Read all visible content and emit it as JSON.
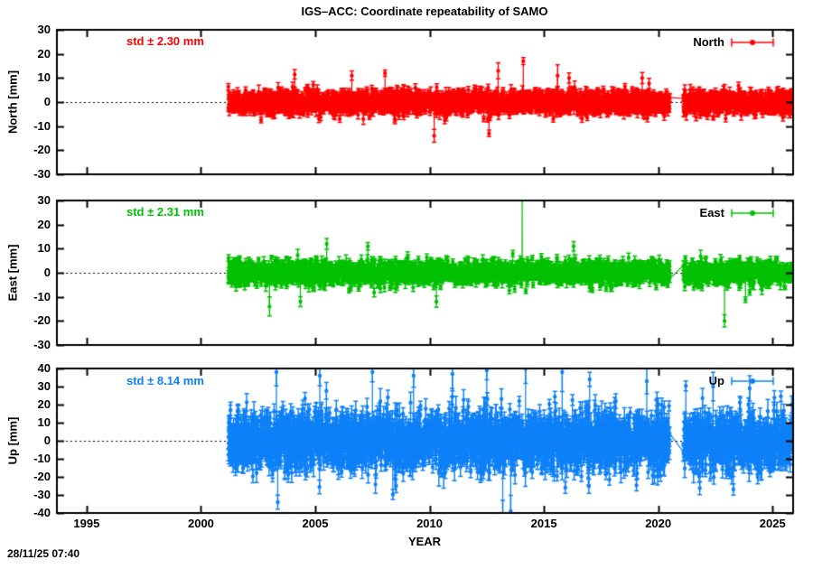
{
  "title": "IGS–ACC: Coordinate repeatability of SAMO",
  "xlabel": "YEAR",
  "timestamp": "28/11/25 07:40",
  "chart_data": {
    "type": "scatter",
    "title": "IGS–ACC: Coordinate repeatability of SAMO",
    "xlabel": "YEAR",
    "x_range": [
      1993.7,
      2025.9
    ],
    "x_ticks": [
      1995,
      2000,
      2005,
      2010,
      2015,
      2020,
      2025
    ],
    "grid": false,
    "zero_line_style": "dotted",
    "legend_position": "top-right-inside",
    "panels": [
      {
        "name": "North",
        "axis_label": "North [mm]",
        "legend_label": "North",
        "std_label": "std ± 2.30 mm",
        "std_value_mm": 2.3,
        "color": "#ff0000",
        "ylim": [
          -30,
          30
        ],
        "yticks": [
          30,
          20,
          10,
          0,
          -10,
          -20,
          -30
        ],
        "data_start": 2001.2,
        "data_end": 2025.85,
        "gap": [
          2020.5,
          2021.1
        ],
        "noise_std": 2.3,
        "err_base": 0.8,
        "err_var": 0.7,
        "tail_prob": 0.02,
        "tail_factor": 1.5,
        "seed": 7,
        "outliers": [
          [
            2004.1,
            11.5
          ],
          [
            2006.6,
            11
          ],
          [
            2008.05,
            12
          ],
          [
            2010.2,
            -14
          ],
          [
            2012.6,
            -13
          ],
          [
            2013.0,
            13
          ],
          [
            2014.1,
            17
          ],
          [
            2015.6,
            11
          ],
          [
            2016.1,
            10
          ],
          [
            2019.3,
            10
          ]
        ]
      },
      {
        "name": "East",
        "axis_label": "East [mm]",
        "legend_label": "East",
        "std_label": "std ± 2.31 mm",
        "std_value_mm": 2.31,
        "color": "#00c000",
        "ylim": [
          -30,
          30
        ],
        "yticks": [
          30,
          20,
          10,
          0,
          -10,
          -20,
          -30
        ],
        "data_start": 2001.2,
        "data_end": 2025.85,
        "gap": [
          2020.5,
          2021.1
        ],
        "noise_std": 2.31,
        "err_base": 0.8,
        "err_var": 0.7,
        "tail_prob": 0.02,
        "tail_factor": 1.5,
        "seed": 13,
        "outliers": [
          [
            2003.0,
            -14
          ],
          [
            2004.35,
            -12
          ],
          [
            2005.5,
            12
          ],
          [
            2007.3,
            11
          ],
          [
            2010.3,
            -12
          ],
          [
            2014.05,
            46
          ],
          [
            2016.3,
            11
          ],
          [
            2022.9,
            -20
          ]
        ]
      },
      {
        "name": "Up",
        "axis_label": "Up [mm]",
        "legend_label": "Up",
        "std_label": "std ± 8.14 mm",
        "std_value_mm": 8.14,
        "color": "#0d80f8",
        "ylim": [
          -40,
          40
        ],
        "yticks": [
          40,
          30,
          20,
          10,
          0,
          -10,
          -20,
          -30,
          -40
        ],
        "data_start": 2001.2,
        "data_end": 2025.85,
        "gap": [
          2020.5,
          2021.1
        ],
        "noise_std": 8.14,
        "err_base": 2.5,
        "err_var": 2.0,
        "tail_prob": 0.03,
        "tail_factor": 1.4,
        "seed": 42,
        "outliers": [
          [
            2003.3,
            38
          ],
          [
            2003.36,
            -34
          ],
          [
            2005.2,
            36
          ],
          [
            2007.5,
            38
          ],
          [
            2009.3,
            36
          ],
          [
            2011.0,
            37
          ],
          [
            2012.5,
            39
          ],
          [
            2013.2,
            -41
          ],
          [
            2013.55,
            -39
          ],
          [
            2014.2,
            40
          ],
          [
            2015.8,
            38
          ],
          [
            2017.0,
            34
          ],
          [
            2019.5,
            33
          ],
          [
            2022.4,
            30
          ],
          [
            2024.0,
            29
          ]
        ]
      }
    ]
  }
}
